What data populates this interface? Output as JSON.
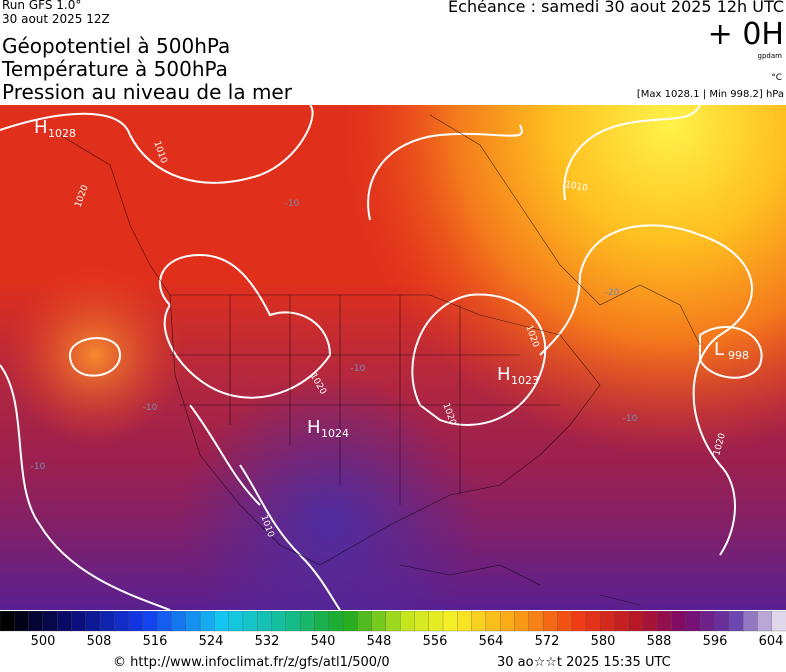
{
  "header": {
    "run": "Run GFS 1.0°",
    "run_date": "30 aout 2025 12Z",
    "titles": [
      "Géopotentiel à 500hPa",
      "Température à 500hPa",
      "Pression au niveau de la mer"
    ],
    "echeance": "Echéance : samedi 30 aout 2025 12h UTC",
    "offset": "+ 0H",
    "offset_unit": "gpdam",
    "temp_unit": "°C",
    "pressure_range": "[Max 1028.1 | Min 998.2] hPa"
  },
  "map": {
    "centers": [
      {
        "letter": "H",
        "value": 1028
      },
      {
        "letter": "H",
        "value": 1023
      },
      {
        "letter": "H",
        "value": 1024
      },
      {
        "letter": "L",
        "value": 998
      }
    ],
    "isobar_labels": [
      1010,
      1020,
      1010,
      1020,
      1020,
      1020,
      1020,
      1010
    ],
    "temperature_labels": [
      -10,
      -20,
      -10,
      -10,
      -10,
      -10
    ]
  },
  "colorbar": {
    "labels": [
      500,
      508,
      516,
      524,
      532,
      540,
      548,
      556,
      564,
      572,
      580,
      588,
      596,
      604
    ]
  },
  "footer": {
    "source": "© http://www.infoclimat.fr/z/gfs/atl1/500/0",
    "generated": "30 ao☆☆t 2025 15:35 UTC"
  }
}
